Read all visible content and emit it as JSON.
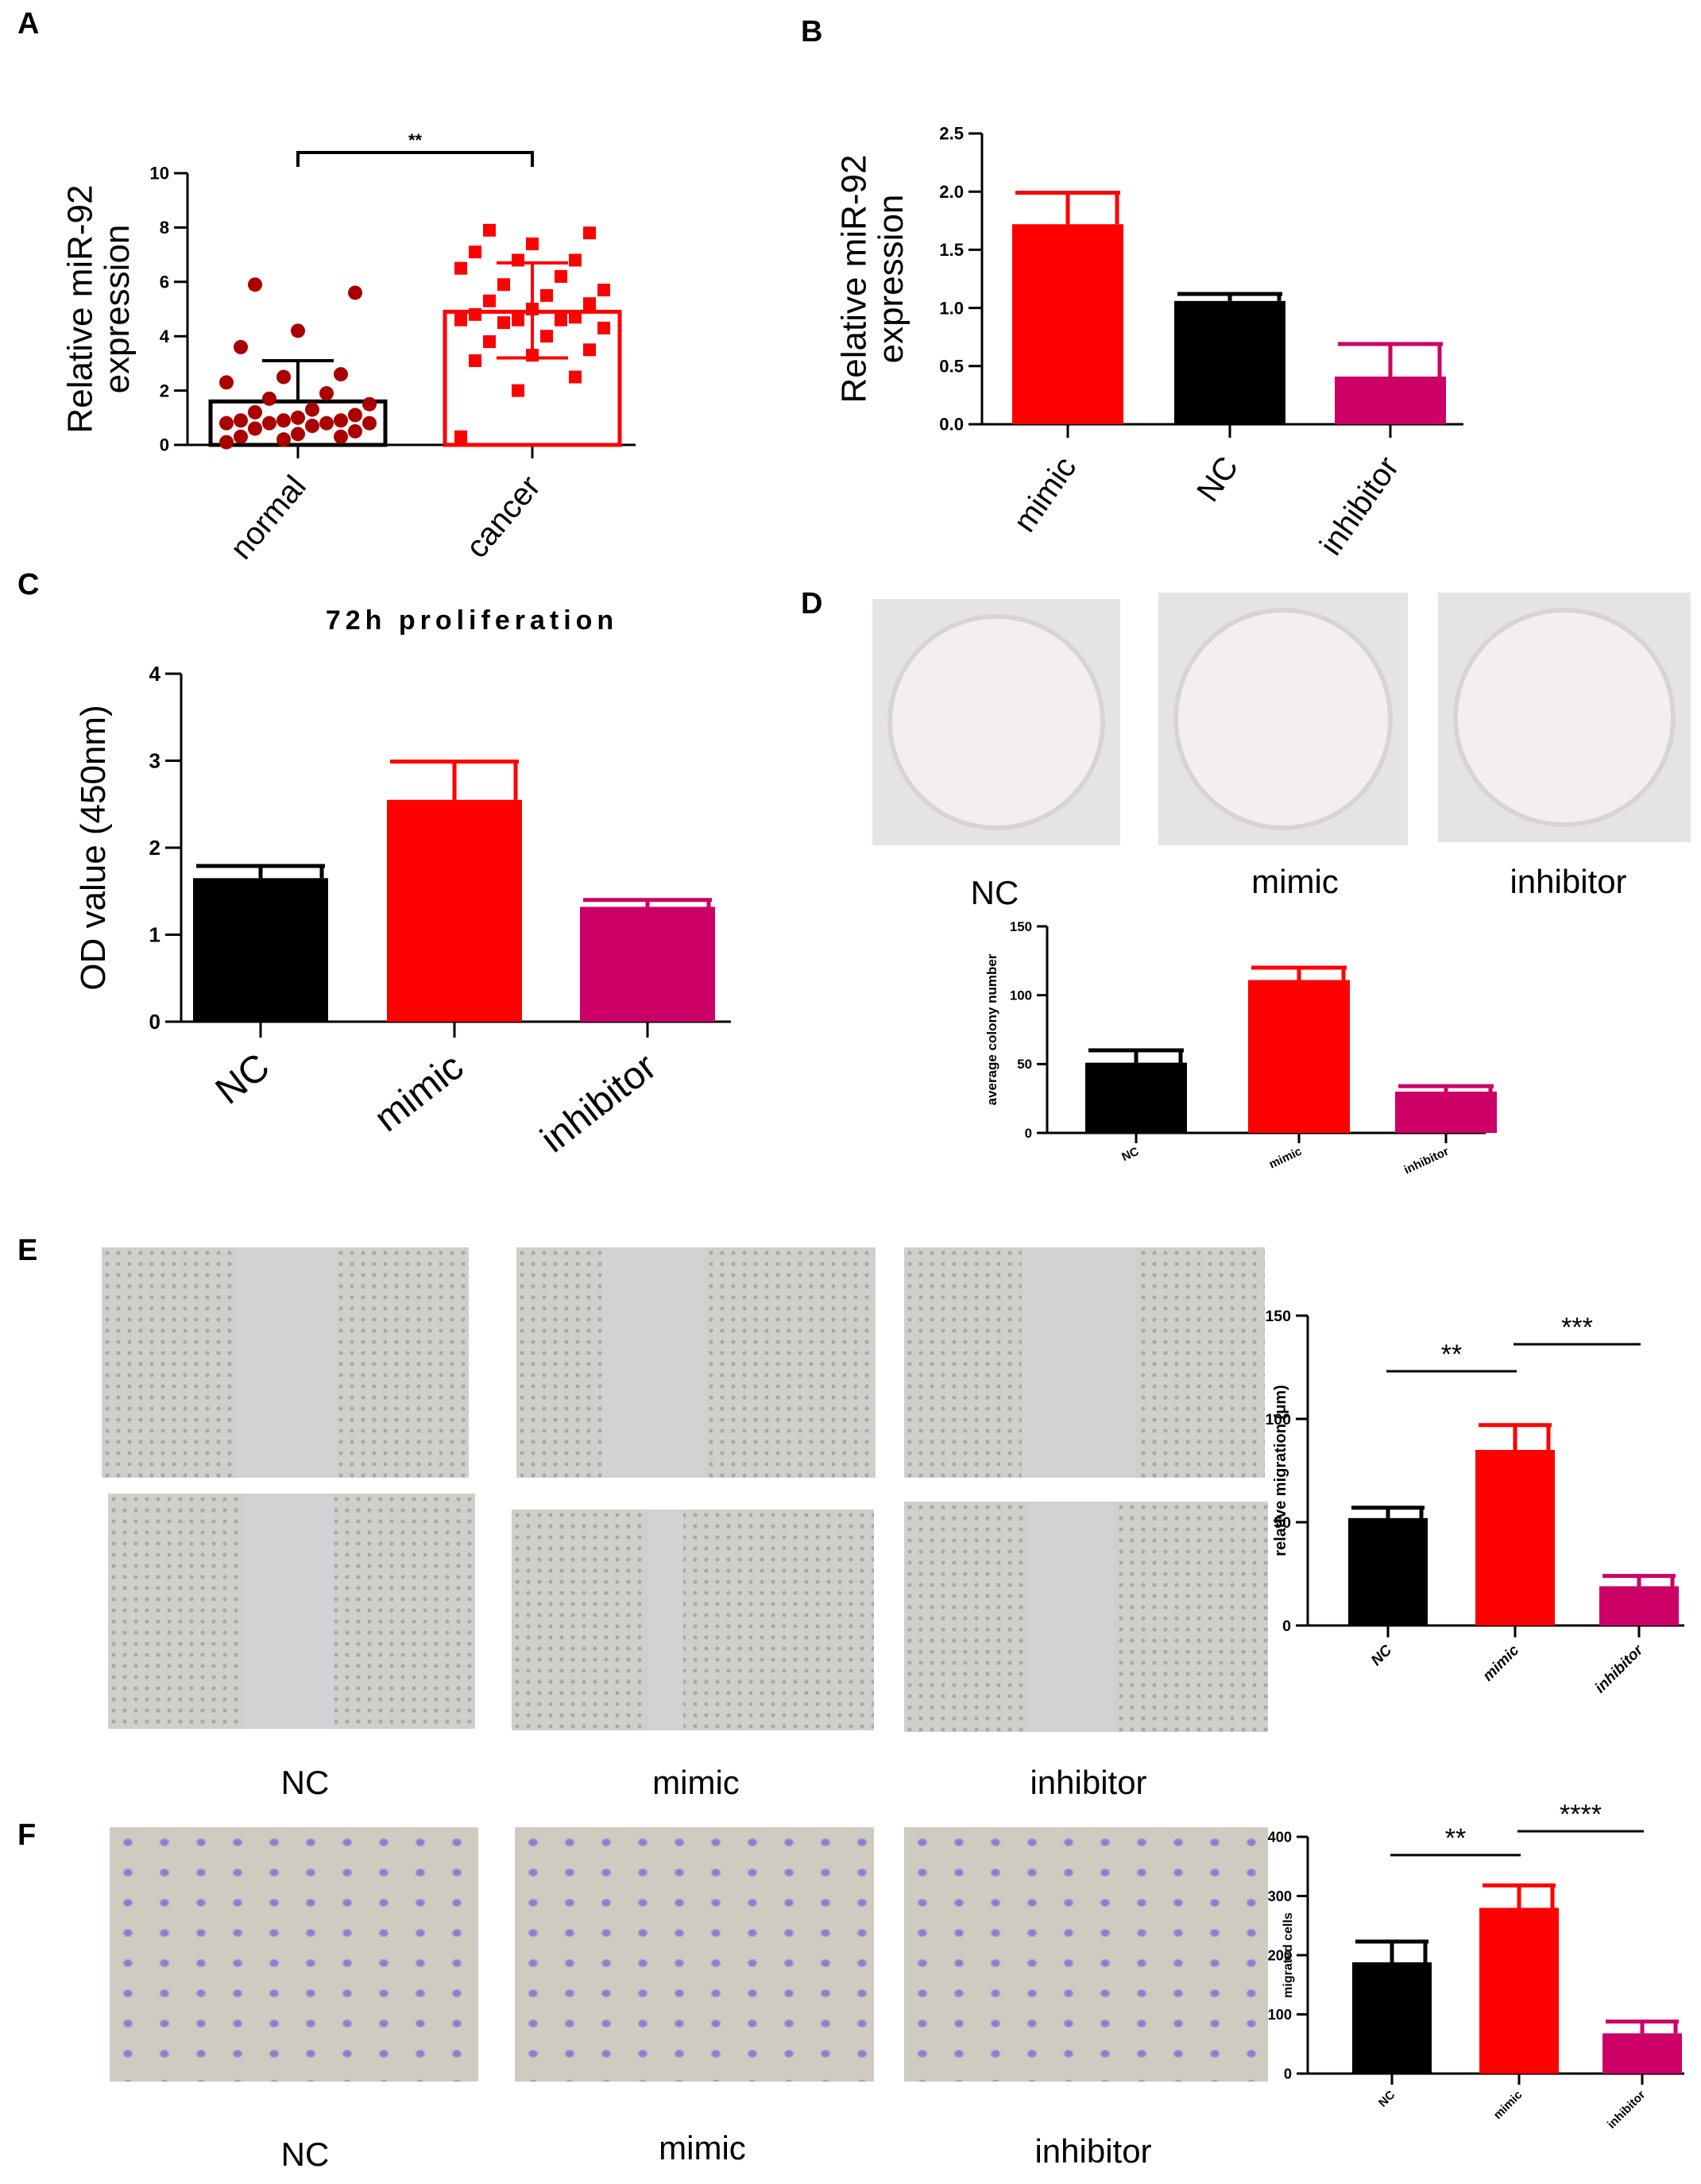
{
  "panels": {
    "A": {
      "letter": "A"
    },
    "B": {
      "letter": "B"
    },
    "C": {
      "letter": "C"
    },
    "D": {
      "letter": "D"
    },
    "E": {
      "letter": "E"
    },
    "F": {
      "letter": "F"
    }
  },
  "photo_labels": {
    "D": [
      "NC",
      "mimic",
      "inhibitor"
    ],
    "E": [
      "NC",
      "mimic",
      "inhibitor"
    ],
    "F": [
      "NC",
      "mimic",
      "inhibitor"
    ]
  },
  "colors": {
    "black": "#000000",
    "red": "#ff0000",
    "magenta": "#cc0066",
    "dark_red": "#aa0000"
  },
  "chart_data": [
    {
      "id": "A",
      "type": "scatter",
      "ylabel": [
        "Relative miR-92",
        "expression"
      ],
      "ylim": [
        0,
        10
      ],
      "yticks": [
        0,
        2,
        4,
        6,
        8,
        10
      ],
      "categories": [
        "normal",
        "cancer"
      ],
      "bars": [
        {
          "mean": 1.6,
          "sd_upper": 3.1
        },
        {
          "mean": 4.9,
          "sd_upper": 6.7,
          "sd_lower": 3.2
        }
      ],
      "significance": "**",
      "points": {
        "normal": [
          0.1,
          0.2,
          0.3,
          0.3,
          0.4,
          0.5,
          0.6,
          0.7,
          0.8,
          0.8,
          0.8,
          0.8,
          0.9,
          0.9,
          0.9,
          1.0,
          1.1,
          1.2,
          1.3,
          1.5,
          1.7,
          1.9,
          2.3,
          2.5,
          2.6,
          3.6,
          4.2,
          5.6,
          5.9
        ],
        "cancer": [
          0.3,
          2.0,
          2.5,
          3.1,
          3.3,
          3.5,
          3.8,
          4.0,
          4.3,
          4.5,
          4.6,
          4.6,
          4.6,
          4.7,
          4.8,
          5.0,
          5.2,
          5.3,
          5.5,
          5.7,
          5.9,
          6.2,
          6.5,
          6.8,
          6.8,
          7.1,
          7.4,
          7.8,
          7.9
        ]
      }
    },
    {
      "id": "B",
      "type": "bar",
      "ylabel": [
        "Relative miR-92",
        "expression"
      ],
      "ylim": [
        0,
        2.5
      ],
      "yticks": [
        "0.0",
        "0.5",
        "1.0",
        "1.5",
        "2.0",
        "2.5"
      ],
      "categories": [
        "mimic",
        "NC",
        "inhibitor"
      ],
      "values": [
        1.72,
        1.06,
        0.41
      ],
      "errors": [
        0.27,
        0.06,
        0.28
      ]
    },
    {
      "id": "C",
      "type": "bar",
      "title": "72h proliferation",
      "ylabel": [
        "OD value (450nm)"
      ],
      "ylim": [
        0,
        4
      ],
      "yticks": [
        0,
        1,
        2,
        3,
        4
      ],
      "categories": [
        "NC",
        "mimic",
        "inhibitor"
      ],
      "values": [
        1.65,
        2.55,
        1.32
      ],
      "errors": [
        0.14,
        0.44,
        0.08
      ]
    },
    {
      "id": "D",
      "type": "bar",
      "ylabel": [
        "average colony number"
      ],
      "ylim": [
        0,
        150
      ],
      "yticks": [
        0,
        50,
        100,
        150
      ],
      "categories": [
        "NC",
        "mimic",
        "inhibitor"
      ],
      "values": [
        51,
        111,
        30
      ],
      "errors": [
        9,
        9,
        4
      ]
    },
    {
      "id": "E",
      "type": "bar",
      "ylabel": [
        "relative migration (μm)"
      ],
      "ylim": [
        0,
        150
      ],
      "yticks": [
        0,
        50,
        100,
        150
      ],
      "categories": [
        "NC",
        "mimic",
        "inhibitor"
      ],
      "values": [
        52,
        85,
        19
      ],
      "errors": [
        5,
        12,
        5
      ],
      "significance": [
        "**",
        "***"
      ]
    },
    {
      "id": "F",
      "type": "bar",
      "ylabel": [
        "migrated cells"
      ],
      "ylim": [
        0,
        400
      ],
      "yticks": [
        0,
        100,
        200,
        300,
        400
      ],
      "categories": [
        "NC",
        "mimic",
        "inhibitor"
      ],
      "values": [
        188,
        280,
        68
      ],
      "errors": [
        35,
        38,
        20
      ],
      "significance": [
        "**",
        "****"
      ]
    }
  ]
}
